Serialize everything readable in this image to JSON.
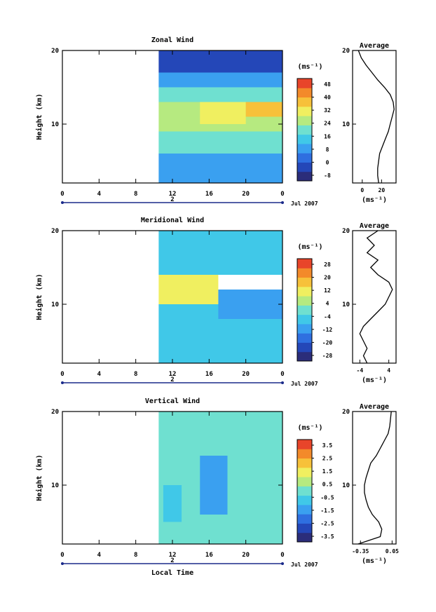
{
  "date_label": "Jul 2007",
  "x_axis_label": "Local Time",
  "chart_data": [
    {
      "type": "heatmap",
      "title": "Zonal Wind",
      "ylabel": "Height (km)",
      "yticks": [
        "20",
        "10"
      ],
      "xticks": [
        "0",
        "4",
        "8",
        "12",
        "16",
        "20",
        "0"
      ],
      "day_label": "2",
      "xlim": [
        0,
        24
      ],
      "ylim": [
        2,
        20
      ],
      "data_start_hour": 10.5,
      "colorbar": {
        "unit": "(ms⁻¹)",
        "ticks": [
          "48",
          "40",
          "32",
          "24",
          "16",
          "8",
          "0",
          "-8"
        ],
        "min": -8,
        "max": 52
      },
      "average": {
        "title": "Average",
        "xticks": [
          "0",
          "20"
        ],
        "xlim": [
          -10,
          35
        ],
        "xlabel": "(ms⁻¹)",
        "yticks": [
          "20",
          "10"
        ],
        "profile": [
          [
            17,
            2
          ],
          [
            16,
            3
          ],
          [
            16,
            4
          ],
          [
            17,
            5
          ],
          [
            18,
            6
          ],
          [
            21,
            7
          ],
          [
            24,
            8
          ],
          [
            27,
            9
          ],
          [
            29,
            10
          ],
          [
            31,
            11
          ],
          [
            33,
            12
          ],
          [
            32,
            13
          ],
          [
            29,
            14
          ],
          [
            23,
            15
          ],
          [
            16,
            16
          ],
          [
            10,
            17
          ],
          [
            4,
            18
          ],
          [
            -1,
            19
          ],
          [
            -4,
            20
          ]
        ]
      },
      "regions": [
        {
          "x0": 10.5,
          "x1": 24,
          "y0": 2,
          "y1": 6,
          "value": 12
        },
        {
          "x0": 10.5,
          "x1": 24,
          "y0": 6,
          "y1": 9,
          "value": 20
        },
        {
          "x0": 10.5,
          "x1": 24,
          "y0": 9,
          "y1": 13,
          "value": 28
        },
        {
          "x0": 15,
          "x1": 20,
          "y0": 10,
          "y1": 13,
          "value": 34
        },
        {
          "x0": 20,
          "x1": 24,
          "y0": 11,
          "y1": 13,
          "value": 40
        },
        {
          "x0": 10.5,
          "x1": 24,
          "y0": 13,
          "y1": 15,
          "value": 20
        },
        {
          "x0": 10.5,
          "x1": 24,
          "y0": 15,
          "y1": 17,
          "value": 10
        },
        {
          "x0": 10.5,
          "x1": 24,
          "y0": 17,
          "y1": 20,
          "value": 0
        }
      ]
    },
    {
      "type": "heatmap",
      "title": "Meridional Wind",
      "ylabel": "Height (km)",
      "yticks": [
        "20",
        "10"
      ],
      "xticks": [
        "0",
        "4",
        "8",
        "12",
        "16",
        "20",
        "0"
      ],
      "day_label": "2",
      "xlim": [
        0,
        24
      ],
      "ylim": [
        2,
        20
      ],
      "data_start_hour": 10.5,
      "colorbar": {
        "unit": "(ms⁻¹)",
        "ticks": [
          "28",
          "20",
          "12",
          "4",
          "-4",
          "-12",
          "-20",
          "-28"
        ],
        "min": -32,
        "max": 32
      },
      "average": {
        "title": "Average",
        "xticks": [
          "-4",
          "4"
        ],
        "xlim": [
          -6,
          6
        ],
        "xlabel": "(ms⁻¹)",
        "yticks": [
          "20",
          "10"
        ],
        "profile": [
          [
            -2,
            2
          ],
          [
            -3,
            3
          ],
          [
            -2,
            4
          ],
          [
            -3,
            5
          ],
          [
            -4,
            6
          ],
          [
            -3,
            7
          ],
          [
            -1,
            8
          ],
          [
            1,
            9
          ],
          [
            3,
            10
          ],
          [
            4,
            11
          ],
          [
            5,
            12
          ],
          [
            4,
            13
          ],
          [
            1,
            14
          ],
          [
            -1,
            15
          ],
          [
            1,
            16
          ],
          [
            -2,
            17
          ],
          [
            0,
            18
          ],
          [
            -2,
            19
          ],
          [
            1,
            20
          ]
        ]
      },
      "regions": [
        {
          "x0": 10.5,
          "x1": 24,
          "y0": 2,
          "y1": 6,
          "value": -4
        },
        {
          "x0": 10.5,
          "x1": 24,
          "y0": 6,
          "y1": 10,
          "value": -8
        },
        {
          "x0": 10.5,
          "x1": 17,
          "y0": 10,
          "y1": 14,
          "value": 10
        },
        {
          "x0": 17,
          "x1": 24,
          "y0": 8,
          "y1": 12,
          "value": -14
        },
        {
          "x0": 10.5,
          "x1": 24,
          "y0": 14,
          "y1": 17,
          "value": -4
        },
        {
          "x0": 10.5,
          "x1": 24,
          "y0": 17,
          "y1": 20,
          "value": -8
        }
      ]
    },
    {
      "type": "heatmap",
      "title": "Vertical Wind",
      "ylabel": "Height (km)",
      "yticks": [
        "20",
        "10"
      ],
      "xticks": [
        "0",
        "4",
        "8",
        "12",
        "16",
        "20",
        "0"
      ],
      "day_label": "2",
      "xlim": [
        0,
        24
      ],
      "ylim": [
        2,
        20
      ],
      "data_start_hour": 10.5,
      "colorbar": {
        "unit": "(ms⁻¹)",
        "ticks": [
          "3.5",
          "2.5",
          "1.5",
          "0.5",
          "-0.5",
          "-1.5",
          "-2.5",
          "-3.5"
        ],
        "min": -4,
        "max": 4
      },
      "average": {
        "title": "Average",
        "xticks": [
          "-0.35",
          "0.05"
        ],
        "xlim": [
          -0.45,
          0.1
        ],
        "xlabel": "(ms⁻¹)",
        "yticks": [
          "20",
          "10"
        ],
        "profile": [
          [
            -0.38,
            2
          ],
          [
            -0.1,
            3
          ],
          [
            -0.08,
            4
          ],
          [
            -0.12,
            5
          ],
          [
            -0.2,
            6
          ],
          [
            -0.25,
            7
          ],
          [
            -0.28,
            8
          ],
          [
            -0.3,
            9
          ],
          [
            -0.3,
            10
          ],
          [
            -0.28,
            11
          ],
          [
            -0.25,
            12
          ],
          [
            -0.22,
            13
          ],
          [
            -0.15,
            14
          ],
          [
            -0.1,
            15
          ],
          [
            -0.05,
            16
          ],
          [
            0,
            17
          ],
          [
            0.02,
            18
          ],
          [
            0.03,
            19
          ],
          [
            0.04,
            20
          ]
        ]
      },
      "regions": [
        {
          "x0": 10.5,
          "x1": 24,
          "y0": 2,
          "y1": 20,
          "value": -0.2
        },
        {
          "x0": 15,
          "x1": 18,
          "y0": 6,
          "y1": 14,
          "value": -1.2
        },
        {
          "x0": 11,
          "x1": 13,
          "y0": 5,
          "y1": 10,
          "value": -0.8
        }
      ]
    }
  ]
}
